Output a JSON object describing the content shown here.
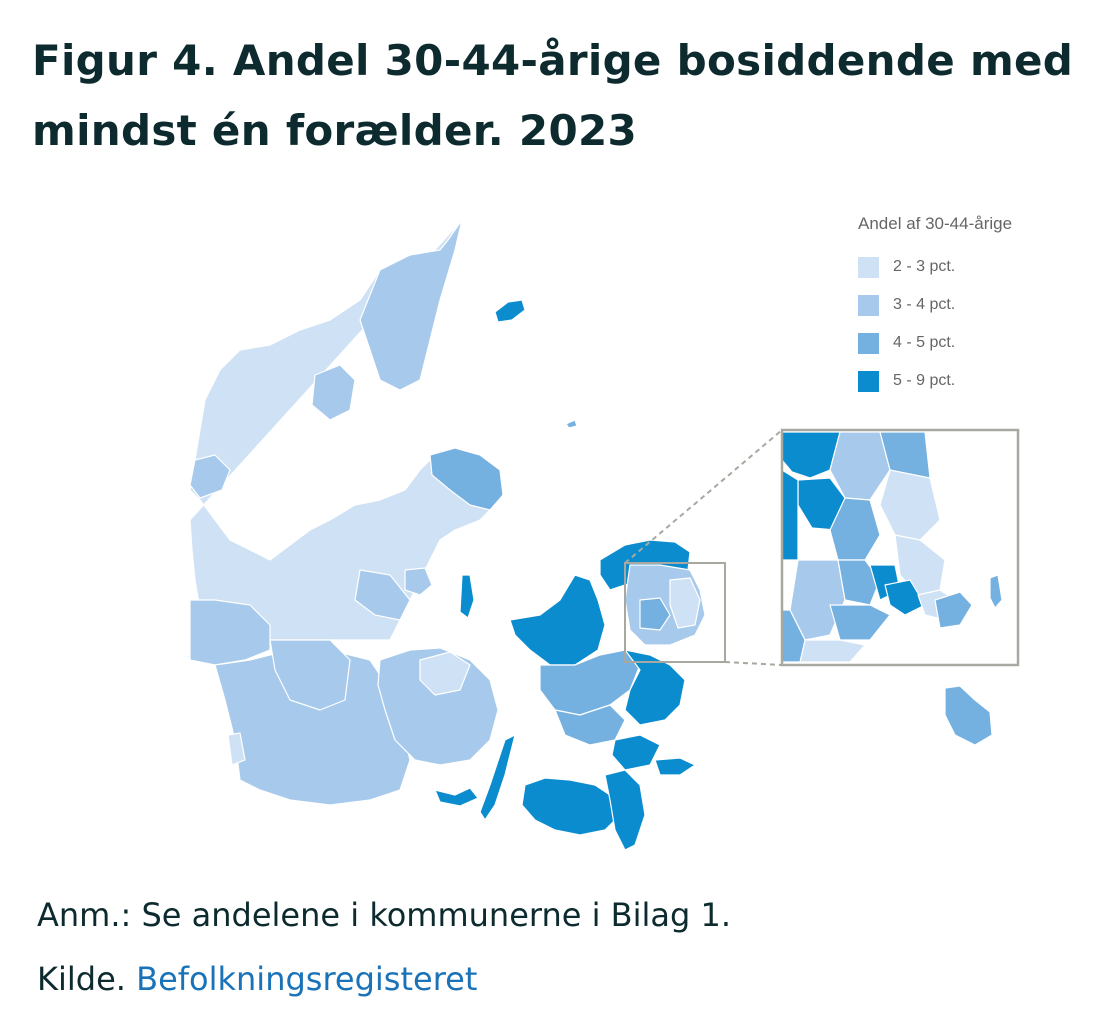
{
  "title": "Figur 4. Andel 30-44-årige bosiddende med mindst én forælder. 2023",
  "legend": {
    "title": "Andel af 30-44-årige",
    "items": [
      {
        "label": "2 - 3 pct.",
        "color": "#cfe1f4"
      },
      {
        "label": "3 - 4 pct.",
        "color": "#a7c9ec"
      },
      {
        "label": "4 - 5 pct.",
        "color": "#74b0e0"
      },
      {
        "label": "5 - 9 pct.",
        "color": "#0b8ccf"
      }
    ]
  },
  "note": "Anm.: Se andelene i kommunerne i Bilag 1.",
  "source": {
    "prefix": "Kilde. ",
    "link_text": "Befolkningsregisteret"
  },
  "colors": {
    "title": "#0d2b2e",
    "link": "#1a73b8",
    "inset_border": "#a8a8a0",
    "region_border": "#ffffff"
  }
}
